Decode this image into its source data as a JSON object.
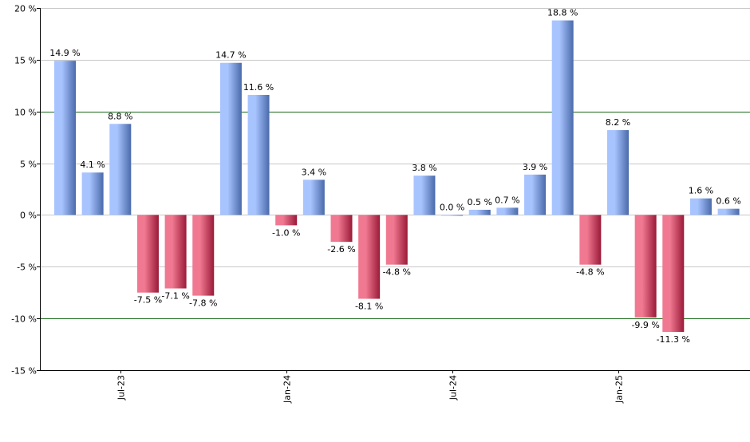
{
  "chart_data": {
    "type": "bar",
    "title": "",
    "xlabel": "",
    "ylabel": "",
    "ylim": [
      -15,
      20
    ],
    "yticks": [
      20,
      15,
      10,
      5,
      0,
      -5,
      -10,
      -15
    ],
    "ytick_labels": [
      "20 %",
      "15 %",
      "10 %",
      "5 %",
      "0 %",
      "-5 %",
      "-10 %",
      "-15 %"
    ],
    "reference_lines": [
      10,
      -10
    ],
    "values": [
      14.9,
      4.1,
      8.8,
      -7.5,
      -7.1,
      -7.8,
      14.7,
      11.6,
      -1.0,
      3.4,
      -2.6,
      -8.1,
      -4.8,
      3.8,
      0.0,
      0.5,
      0.7,
      3.9,
      18.8,
      -4.8,
      8.2,
      -9.9,
      -11.3,
      1.6,
      0.6
    ],
    "value_labels": [
      "14.9 %",
      "4.1 %",
      "8.8 %",
      "-7.5 %",
      "-7.1 %",
      "-7.8 %",
      "14.7 %",
      "11.6 %",
      "-1.0 %",
      "3.4 %",
      "-2.6 %",
      "-8.1 %",
      "-4.8 %",
      "3.8 %",
      "0.0 %",
      "0.5 %",
      "0.7 %",
      "3.9 %",
      "18.8 %",
      "-4.8 %",
      "8.2 %",
      "-9.9 %",
      "-11.3 %",
      "1.6 %",
      "0.6 %"
    ],
    "x_tick_labels": [
      {
        "label": "Jul-23",
        "bar_index": 2
      },
      {
        "label": "Jan-24",
        "bar_index": 8
      },
      {
        "label": "Jul-24",
        "bar_index": 14
      },
      {
        "label": "Jan-25",
        "bar_index": 20
      }
    ],
    "colors": {
      "positive_light": "#a8c4ff",
      "positive_dark": "#4a6aaa",
      "negative_light": "#f07890",
      "negative_dark": "#9a1a38",
      "grid": "#c8c8c8",
      "reference_line": "#1a6a1a",
      "axis": "#000000"
    }
  }
}
